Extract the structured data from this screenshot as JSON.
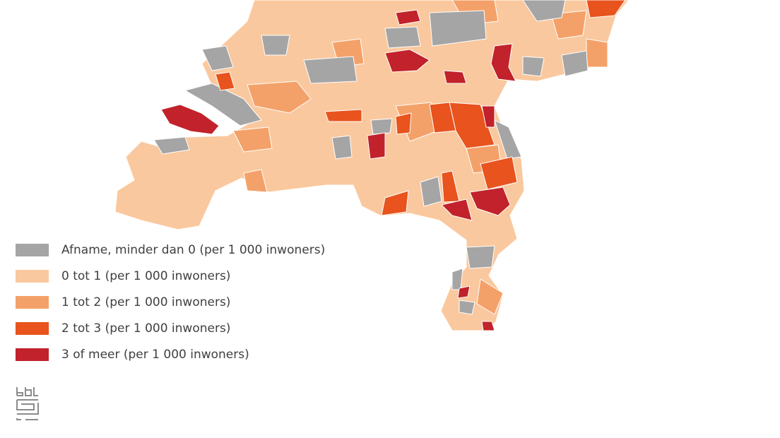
{
  "legend": [
    {
      "label": "Afname, minder dan 0 (per 1 000 inwoners)",
      "color": "#a5a5a5"
    },
    {
      "label": "0 tot 1 (per 1 000 inwoners)",
      "color": "#fac89e"
    },
    {
      "label": "1 tot 2 (per 1 000 inwoners)",
      "color": "#f4a169"
    },
    {
      "label": "2 tot 3 (per 1 000 inwoners)",
      "color": "#e8531e"
    },
    {
      "label": "3 of meer (per 1 000 inwoners)",
      "color": "#c1222b"
    }
  ]
}
